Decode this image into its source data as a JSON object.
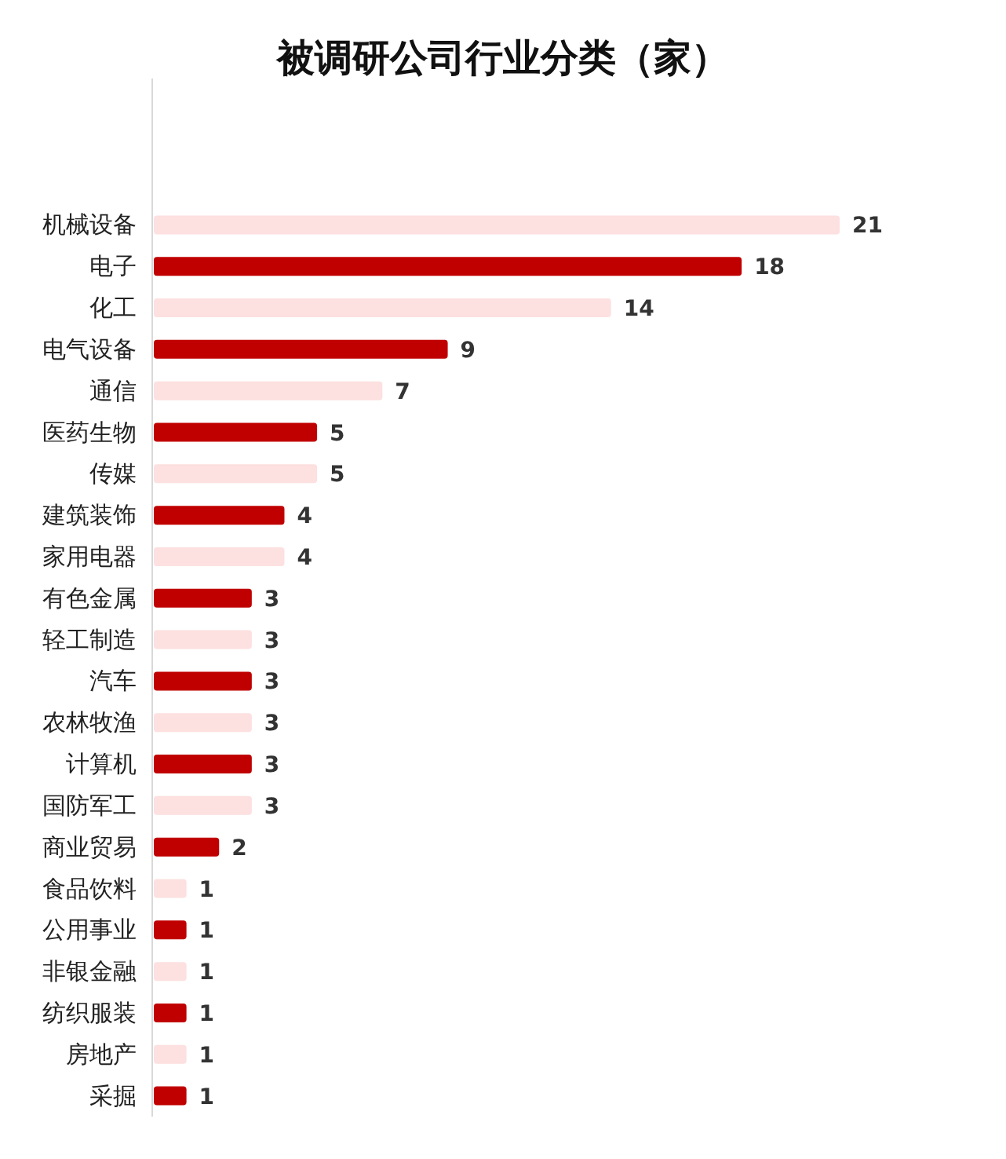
{
  "chart_data": {
    "type": "bar",
    "orientation": "horizontal",
    "title": "被调研公司行业分类（家）",
    "categories": [
      "机械设备",
      "电子",
      "化工",
      "电气设备",
      "通信",
      "医药生物",
      "传媒",
      "建筑装饰",
      "家用电器",
      "有色金属",
      "轻工制造",
      "汽车",
      "农林牧渔",
      "计算机",
      "国防军工",
      "商业贸易",
      "食品饮料",
      "公用事业",
      "非银金融",
      "纺织服装",
      "房地产",
      "采掘"
    ],
    "values": [
      21,
      18,
      14,
      9,
      7,
      5,
      5,
      4,
      4,
      3,
      3,
      3,
      3,
      3,
      3,
      2,
      1,
      1,
      1,
      1,
      1,
      1
    ],
    "colors": [
      "#fde0e0",
      "#c00000",
      "#fde0e0",
      "#c00000",
      "#fde0e0",
      "#c00000",
      "#fde0e0",
      "#c00000",
      "#fde0e0",
      "#c00000",
      "#fde0e0",
      "#c00000",
      "#fde0e0",
      "#c00000",
      "#fde0e0",
      "#c00000",
      "#fde0e0",
      "#c00000",
      "#fde0e0",
      "#c00000",
      "#fde0e0",
      "#c00000"
    ],
    "data_labels": true
  }
}
